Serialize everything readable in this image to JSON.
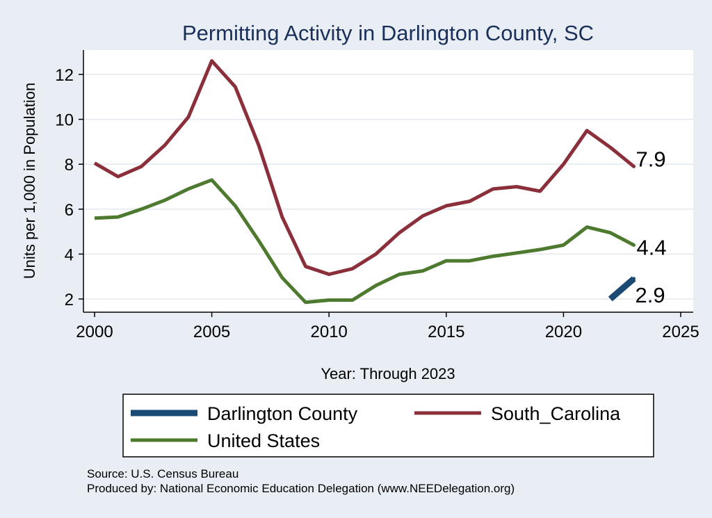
{
  "chart_data": {
    "type": "line",
    "title": "Permitting Activity in Darlington County, SC",
    "xlabel": "Year: Through 2023",
    "ylabel": "Units per 1,000 in Population",
    "xlim": [
      2000,
      2025
    ],
    "ylim": [
      1.5,
      13
    ],
    "x_ticks": [
      2000,
      2005,
      2010,
      2015,
      2020,
      2025
    ],
    "y_ticks": [
      2,
      4,
      6,
      8,
      10,
      12
    ],
    "grid": "horizontal",
    "legend_position": "bottom",
    "series": [
      {
        "name": "Darlington County",
        "color": "#1a4a73",
        "x": [
          2022,
          2023
        ],
        "values": [
          2.0,
          2.9
        ],
        "end_label": "2.9"
      },
      {
        "name": "South_Carolina",
        "color": "#8b2f3a",
        "x": [
          2000,
          2001,
          2002,
          2003,
          2004,
          2005,
          2006,
          2007,
          2008,
          2009,
          2010,
          2011,
          2012,
          2013,
          2014,
          2015,
          2016,
          2017,
          2018,
          2019,
          2020,
          2021,
          2022,
          2023
        ],
        "values": [
          8.05,
          7.45,
          7.9,
          8.85,
          10.1,
          12.6,
          11.45,
          8.85,
          5.65,
          3.45,
          3.1,
          3.35,
          4.0,
          4.95,
          5.7,
          6.15,
          6.35,
          6.9,
          7.0,
          6.8,
          8.0,
          9.5,
          8.75,
          7.9
        ],
        "end_label": "7.9"
      },
      {
        "name": "United States",
        "color": "#4d7a2e",
        "x": [
          2000,
          2001,
          2002,
          2003,
          2004,
          2005,
          2006,
          2007,
          2008,
          2009,
          2010,
          2011,
          2012,
          2013,
          2014,
          2015,
          2016,
          2017,
          2018,
          2019,
          2020,
          2021,
          2022,
          2023
        ],
        "values": [
          5.6,
          5.65,
          6.0,
          6.4,
          6.9,
          7.3,
          6.15,
          4.6,
          2.95,
          1.85,
          1.95,
          1.95,
          2.6,
          3.1,
          3.25,
          3.7,
          3.7,
          3.9,
          4.05,
          4.2,
          4.4,
          5.2,
          4.95,
          4.4
        ],
        "end_label": "4.4"
      }
    ],
    "notes": [
      "Source: U.S. Census Bureau",
      "Produced by: National Economic Education Delegation (www.NEEDelegation.org)"
    ]
  }
}
